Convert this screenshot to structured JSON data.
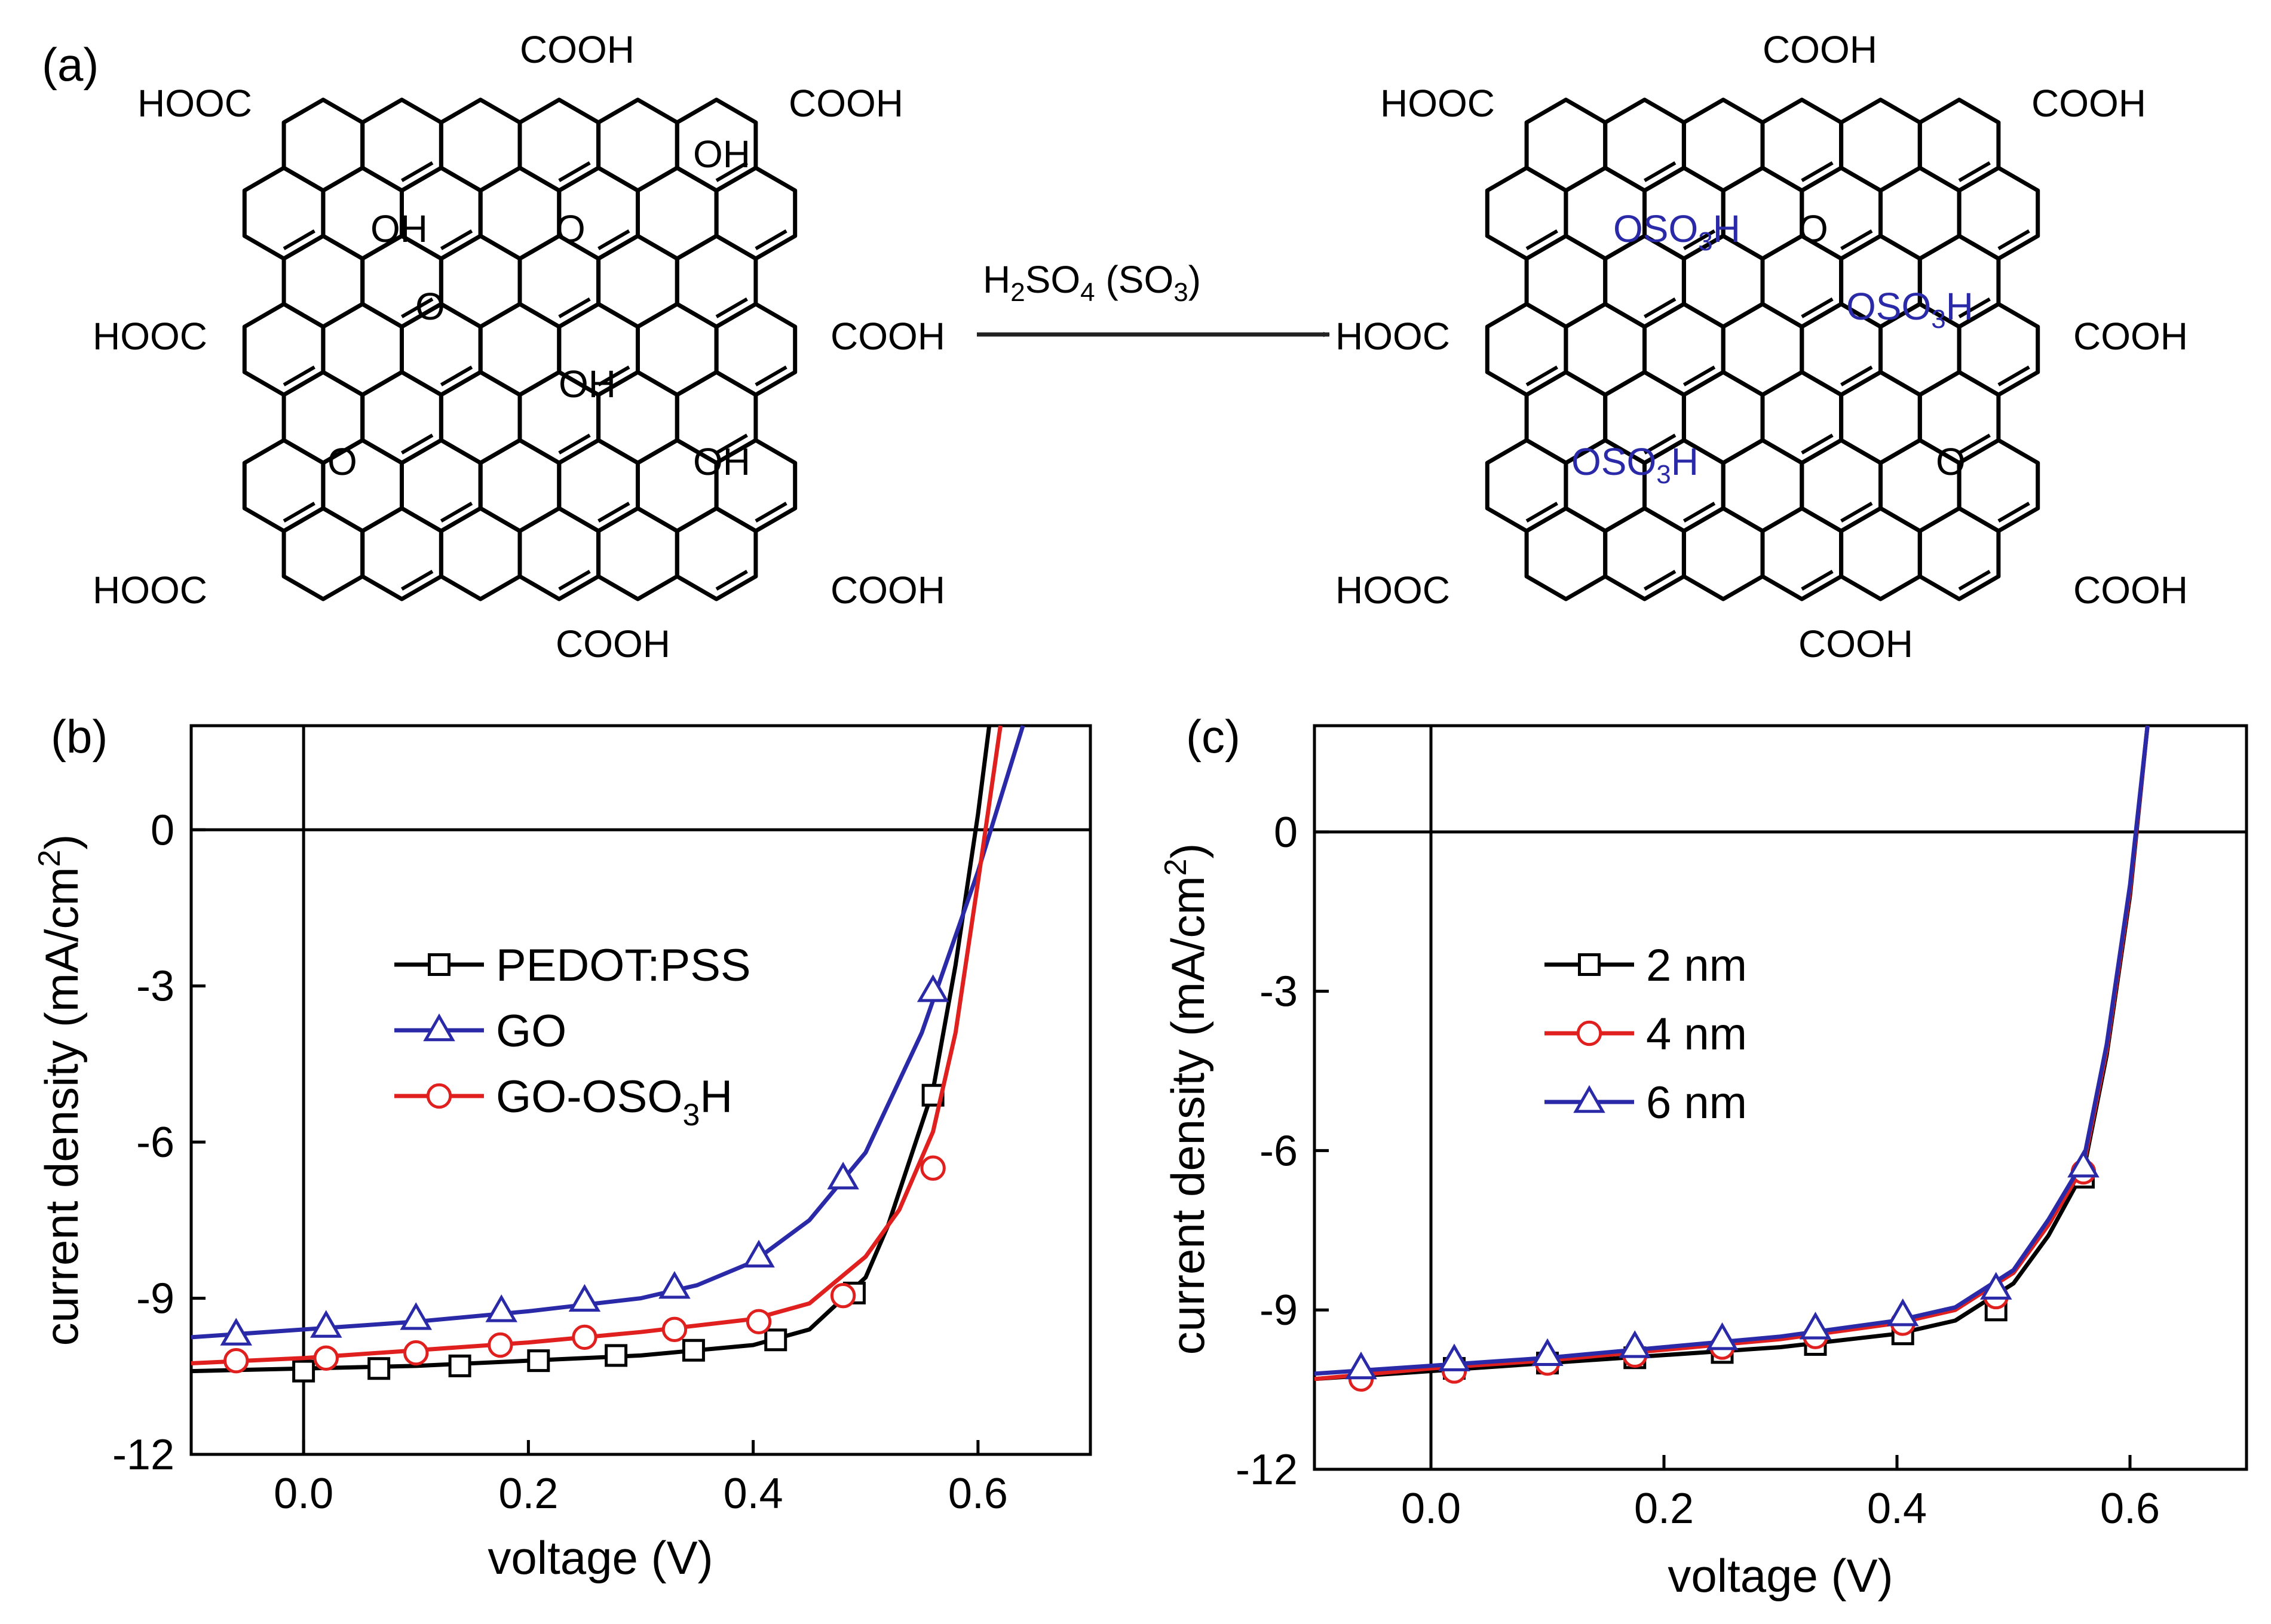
{
  "panel_a": {
    "label": "(a)",
    "reagent_main": "H",
    "reagent_parts": [
      "H",
      "2",
      "SO",
      "4",
      " (SO",
      "3",
      ")"
    ],
    "left": {
      "cooh_groups": [
        "COOH",
        "HOOC",
        "COOH",
        "HOOC",
        "COOH",
        "HOOC",
        "COOH",
        "COOH"
      ],
      "oxygen_groups": [
        "OH",
        "OH",
        "O",
        "O",
        "OH",
        "O",
        "OH"
      ]
    },
    "right": {
      "cooh_groups": [
        "COOH",
        "HOOC",
        "COOH",
        "HOOC",
        "COOH",
        "HOOC",
        "COOH",
        "COOH"
      ],
      "sulfonate_parts": [
        "OSO",
        "3",
        "H"
      ],
      "oxygen_groups": [
        "O",
        "O"
      ]
    },
    "colors": {
      "structure": "#000000",
      "sulfonate": "#2a2aa8"
    }
  },
  "chart_data": [
    {
      "panel_label": "(b)",
      "type": "line",
      "xlabel": "voltage (V)",
      "ylabel_parts": [
        "current density (mA/cm",
        "2",
        ")"
      ],
      "xlim": [
        -0.1,
        0.7
      ],
      "ylim": [
        -12,
        2
      ],
      "xticks": [
        0.0,
        0.2,
        0.4,
        0.6
      ],
      "xtick_labels": [
        "0.0",
        "0.2",
        "0.4",
        "0.6"
      ],
      "yticks": [
        0,
        -3,
        -6,
        -9,
        -12
      ],
      "ytick_labels": [
        "0",
        "-3",
        "-6",
        "-9",
        "-12"
      ],
      "legend_position": "center-left",
      "series": [
        {
          "name": "PEDOT:PSS",
          "legend_parts": [
            "PEDOT:PSS"
          ],
          "color": "#000000",
          "marker": "square",
          "x": [
            -0.1,
            0.0,
            0.1,
            0.2,
            0.3,
            0.4,
            0.45,
            0.5,
            0.52,
            0.54,
            0.56,
            0.58,
            0.6,
            0.61
          ],
          "y": [
            -10.4,
            -10.35,
            -10.3,
            -10.2,
            -10.1,
            -9.9,
            -9.6,
            -8.6,
            -7.6,
            -6.3,
            -5.0,
            -2.6,
            0.3,
            2.0
          ],
          "marker_x": [
            0.0,
            0.067,
            0.139,
            0.209,
            0.278,
            0.347,
            0.42,
            0.49,
            0.56
          ],
          "marker_y": [
            -10.4,
            -10.35,
            -10.3,
            -10.2,
            -10.1,
            -10.0,
            -9.8,
            -8.9,
            -5.1
          ]
        },
        {
          "name": "GO",
          "legend_parts": [
            "GO"
          ],
          "color": "#2a2aa8",
          "marker": "triangle",
          "x": [
            -0.1,
            0.0,
            0.1,
            0.2,
            0.3,
            0.35,
            0.4,
            0.45,
            0.5,
            0.55,
            0.6,
            0.62,
            0.64
          ],
          "y": [
            -9.75,
            -9.6,
            -9.45,
            -9.25,
            -9.0,
            -8.75,
            -8.3,
            -7.5,
            -6.2,
            -3.9,
            -0.8,
            0.6,
            2.0
          ],
          "marker_x": [
            -0.06,
            0.02,
            0.1,
            0.176,
            0.25,
            0.33,
            0.405,
            0.48,
            0.56
          ],
          "marker_y": [
            -9.7,
            -9.55,
            -9.4,
            -9.25,
            -9.05,
            -8.8,
            -8.2,
            -6.7,
            -3.1
          ]
        },
        {
          "name": "GO-OSO3H",
          "legend_parts": [
            "GO-OSO",
            "3",
            "H"
          ],
          "color": "#e0201e",
          "marker": "circle",
          "x": [
            -0.1,
            0.0,
            0.1,
            0.2,
            0.3,
            0.4,
            0.45,
            0.5,
            0.53,
            0.56,
            0.58,
            0.6,
            0.62
          ],
          "y": [
            -10.25,
            -10.15,
            -10.0,
            -9.85,
            -9.65,
            -9.4,
            -9.1,
            -8.2,
            -7.3,
            -5.8,
            -3.9,
            -1.0,
            2.0
          ],
          "marker_x": [
            -0.06,
            0.02,
            0.1,
            0.175,
            0.25,
            0.33,
            0.405,
            0.48,
            0.56
          ],
          "marker_y": [
            -10.2,
            -10.15,
            -10.05,
            -9.9,
            -9.75,
            -9.6,
            -9.45,
            -8.95,
            -6.5
          ]
        }
      ]
    },
    {
      "panel_label": "(c)",
      "type": "line",
      "xlabel": "voltage (V)",
      "ylabel_parts": [
        "current density (mA/cm",
        "2",
        ")"
      ],
      "xlim": [
        -0.1,
        0.7
      ],
      "ylim": [
        -12,
        2
      ],
      "xticks": [
        0.0,
        0.2,
        0.4,
        0.6
      ],
      "xtick_labels": [
        "0.0",
        "0.2",
        "0.4",
        "0.6"
      ],
      "yticks": [
        0,
        -3,
        -6,
        -9,
        -12
      ],
      "ytick_labels": [
        "0",
        "-3",
        "-6",
        "-9",
        "-12"
      ],
      "legend_position": "upper-left",
      "series": [
        {
          "name": "2 nm",
          "legend_parts": [
            "2 nm"
          ],
          "color": "#000000",
          "marker": "square",
          "x": [
            -0.1,
            0.0,
            0.1,
            0.2,
            0.3,
            0.4,
            0.45,
            0.5,
            0.53,
            0.56,
            0.58,
            0.6,
            0.615
          ],
          "y": [
            -10.3,
            -10.15,
            -10.0,
            -9.85,
            -9.7,
            -9.45,
            -9.2,
            -8.5,
            -7.6,
            -6.4,
            -4.2,
            -1.2,
            2.0
          ],
          "marker_x": [
            0.02,
            0.1,
            0.175,
            0.25,
            0.33,
            0.405,
            0.485,
            0.56
          ],
          "marker_y": [
            -10.1,
            -10.0,
            -9.9,
            -9.8,
            -9.65,
            -9.45,
            -9.0,
            -6.5
          ]
        },
        {
          "name": "4 nm",
          "legend_parts": [
            "4 nm"
          ],
          "color": "#e0201e",
          "marker": "circle",
          "x": [
            -0.1,
            0.0,
            0.1,
            0.2,
            0.3,
            0.4,
            0.45,
            0.5,
            0.53,
            0.56,
            0.58,
            0.6,
            0.615
          ],
          "y": [
            -10.3,
            -10.1,
            -9.95,
            -9.75,
            -9.55,
            -9.25,
            -9.0,
            -8.3,
            -7.4,
            -6.3,
            -4.1,
            -1.1,
            2.0
          ],
          "marker_x": [
            -0.06,
            0.02,
            0.1,
            0.175,
            0.25,
            0.33,
            0.405,
            0.485,
            0.56
          ],
          "marker_y": [
            -10.3,
            -10.15,
            -10.0,
            -9.85,
            -9.7,
            -9.5,
            -9.25,
            -8.75,
            -6.4
          ]
        },
        {
          "name": "6 nm",
          "legend_parts": [
            "6 nm"
          ],
          "color": "#2a2aa8",
          "marker": "triangle",
          "x": [
            -0.1,
            0.0,
            0.1,
            0.2,
            0.3,
            0.4,
            0.45,
            0.5,
            0.53,
            0.56,
            0.58,
            0.6,
            0.615
          ],
          "y": [
            -10.2,
            -10.05,
            -9.9,
            -9.7,
            -9.5,
            -9.2,
            -8.95,
            -8.25,
            -7.3,
            -6.2,
            -4.0,
            -1.0,
            2.0
          ],
          "marker_x": [
            -0.06,
            0.02,
            0.1,
            0.175,
            0.25,
            0.33,
            0.405,
            0.485,
            0.56
          ],
          "marker_y": [
            -10.1,
            -9.95,
            -9.85,
            -9.7,
            -9.55,
            -9.35,
            -9.1,
            -8.6,
            -6.3
          ]
        }
      ]
    }
  ]
}
